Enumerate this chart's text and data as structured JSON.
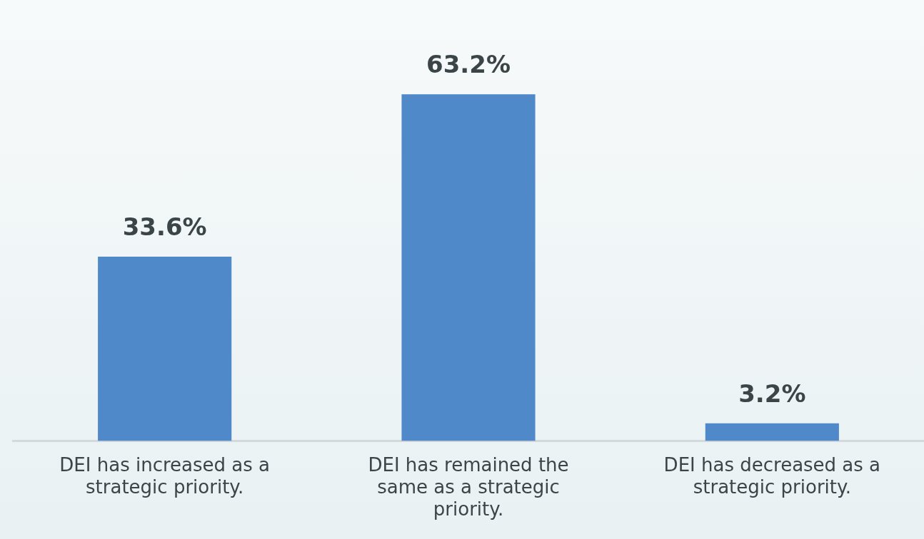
{
  "chart_data": {
    "type": "bar",
    "categories": [
      "DEI has increased as a strategic priority.",
      "DEI has remained the same as a strategic priority.",
      "DEI has decreased as a strategic priority."
    ],
    "values": [
      33.6,
      63.2,
      3.2
    ],
    "value_labels": [
      "33.6%",
      "63.2%",
      "3.2%"
    ],
    "color": "#4f89c9",
    "grid": false,
    "legend": false
  }
}
